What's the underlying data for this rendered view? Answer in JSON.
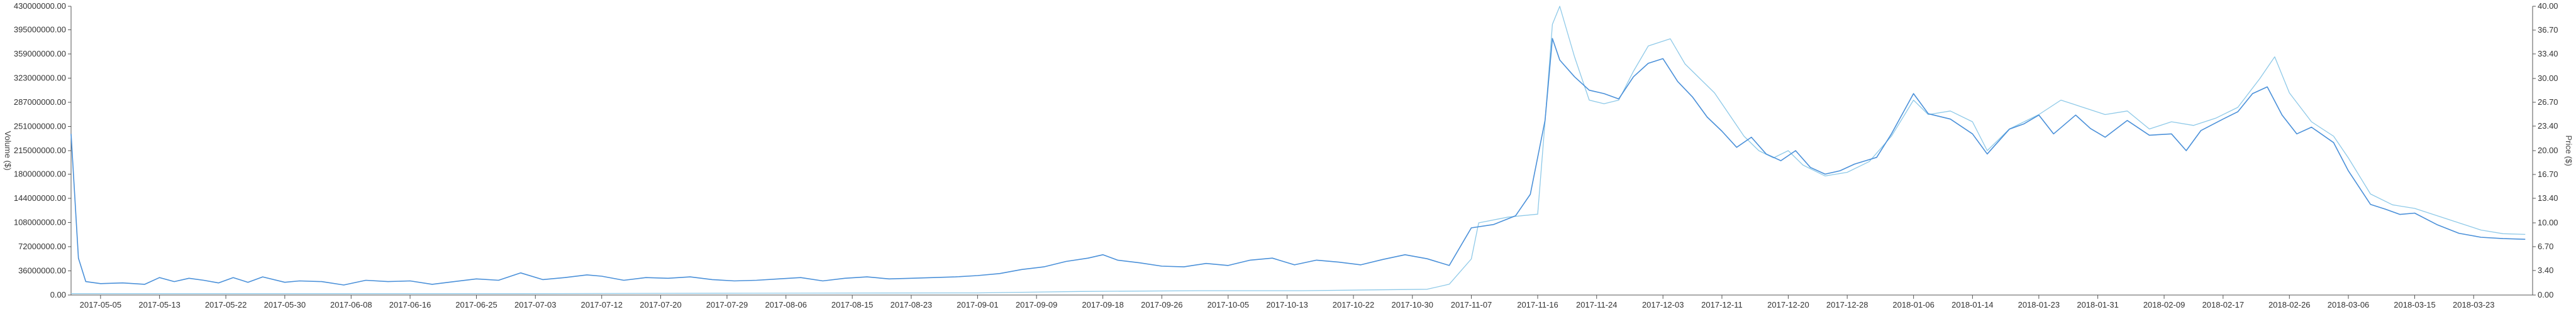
{
  "chart_data": {
    "type": "line",
    "title": "",
    "xlabel": "",
    "y_left_label": "Volume ($)",
    "y_right_label": "Price ($)",
    "y_left_ticks": [
      "0.00",
      "36000000.00",
      "72000000.00",
      "108000000.00",
      "144000000.00",
      "180000000.00",
      "215000000.00",
      "251000000.00",
      "287000000.00",
      "323000000.00",
      "359000000.00",
      "395000000.00",
      "430000000.00"
    ],
    "y_right_ticks": [
      "0.00",
      "3.40",
      "6.70",
      "10.00",
      "13.40",
      "16.70",
      "20.00",
      "23.40",
      "26.70",
      "30.00",
      "33.40",
      "36.70",
      "40.00"
    ],
    "y_left_range": [
      0,
      430000000
    ],
    "y_right_range": [
      0,
      40
    ],
    "x_range": [
      "2017-05-01",
      "2018-03-31"
    ],
    "x_ticks": [
      "2017-05-05",
      "2017-05-13",
      "2017-05-22",
      "2017-05-30",
      "2017-06-08",
      "2017-06-16",
      "2017-06-25",
      "2017-07-03",
      "2017-07-12",
      "2017-07-20",
      "2017-07-29",
      "2017-08-06",
      "2017-08-15",
      "2017-08-23",
      "2017-09-01",
      "2017-09-09",
      "2017-09-18",
      "2017-09-26",
      "2017-10-05",
      "2017-10-13",
      "2017-10-22",
      "2017-10-30",
      "2017-11-07",
      "2017-11-16",
      "2017-11-24",
      "2017-12-03",
      "2017-12-11",
      "2017-12-20",
      "2017-12-28",
      "2018-01-06",
      "2018-01-14",
      "2018-01-23",
      "2018-01-31",
      "2018-02-09",
      "2018-02-17",
      "2018-02-26",
      "2018-03-06",
      "2018-03-15",
      "2018-03-23"
    ],
    "grid": false,
    "series": [
      {
        "axis": "left",
        "color": "#4a90d9",
        "points": [
          [
            "2017-05-01",
            240000000
          ],
          [
            "2017-05-02",
            55000000
          ],
          [
            "2017-05-03",
            20000000
          ],
          [
            "2017-05-05",
            17000000
          ],
          [
            "2017-05-08",
            18000000
          ],
          [
            "2017-05-11",
            16000000
          ],
          [
            "2017-05-13",
            26000000
          ],
          [
            "2017-05-15",
            20000000
          ],
          [
            "2017-05-17",
            25000000
          ],
          [
            "2017-05-19",
            22000000
          ],
          [
            "2017-05-21",
            18000000
          ],
          [
            "2017-05-23",
            26000000
          ],
          [
            "2017-05-25",
            19000000
          ],
          [
            "2017-05-27",
            27000000
          ],
          [
            "2017-05-30",
            19000000
          ],
          [
            "2017-06-01",
            21000000
          ],
          [
            "2017-06-04",
            20000000
          ],
          [
            "2017-06-07",
            15000000
          ],
          [
            "2017-06-10",
            22000000
          ],
          [
            "2017-06-13",
            20000000
          ],
          [
            "2017-06-16",
            21000000
          ],
          [
            "2017-06-19",
            16000000
          ],
          [
            "2017-06-22",
            20000000
          ],
          [
            "2017-06-25",
            24000000
          ],
          [
            "2017-06-28",
            22000000
          ],
          [
            "2017-07-01",
            33000000
          ],
          [
            "2017-07-04",
            23000000
          ],
          [
            "2017-07-07",
            26000000
          ],
          [
            "2017-07-10",
            30000000
          ],
          [
            "2017-07-12",
            28000000
          ],
          [
            "2017-07-15",
            22000000
          ],
          [
            "2017-07-18",
            26000000
          ],
          [
            "2017-07-21",
            25000000
          ],
          [
            "2017-07-24",
            27000000
          ],
          [
            "2017-07-27",
            23000000
          ],
          [
            "2017-07-30",
            21000000
          ],
          [
            "2017-08-02",
            22000000
          ],
          [
            "2017-08-05",
            24000000
          ],
          [
            "2017-08-08",
            26000000
          ],
          [
            "2017-08-11",
            21000000
          ],
          [
            "2017-08-14",
            25000000
          ],
          [
            "2017-08-17",
            27000000
          ],
          [
            "2017-08-20",
            24000000
          ],
          [
            "2017-08-23",
            25000000
          ],
          [
            "2017-08-26",
            26000000
          ],
          [
            "2017-08-29",
            27000000
          ],
          [
            "2017-09-01",
            29000000
          ],
          [
            "2017-09-04",
            32000000
          ],
          [
            "2017-09-07",
            38000000
          ],
          [
            "2017-09-10",
            42000000
          ],
          [
            "2017-09-13",
            50000000
          ],
          [
            "2017-09-16",
            55000000
          ],
          [
            "2017-09-18",
            60000000
          ],
          [
            "2017-09-20",
            52000000
          ],
          [
            "2017-09-23",
            48000000
          ],
          [
            "2017-09-26",
            43000000
          ],
          [
            "2017-09-29",
            42000000
          ],
          [
            "2017-10-02",
            47000000
          ],
          [
            "2017-10-05",
            44000000
          ],
          [
            "2017-10-08",
            52000000
          ],
          [
            "2017-10-11",
            55000000
          ],
          [
            "2017-10-14",
            45000000
          ],
          [
            "2017-10-17",
            52000000
          ],
          [
            "2017-10-20",
            49000000
          ],
          [
            "2017-10-23",
            45000000
          ],
          [
            "2017-10-26",
            53000000
          ],
          [
            "2017-10-29",
            60000000
          ],
          [
            "2017-11-01",
            54000000
          ],
          [
            "2017-11-04",
            44000000
          ],
          [
            "2017-11-07",
            100000000
          ],
          [
            "2017-11-10",
            105000000
          ],
          [
            "2017-11-13",
            118000000
          ],
          [
            "2017-11-15",
            150000000
          ],
          [
            "2017-11-17",
            260000000
          ],
          [
            "2017-11-18",
            382000000
          ],
          [
            "2017-11-19",
            350000000
          ],
          [
            "2017-11-21",
            325000000
          ],
          [
            "2017-11-23",
            305000000
          ],
          [
            "2017-11-25",
            300000000
          ],
          [
            "2017-11-27",
            292000000
          ],
          [
            "2017-11-29",
            325000000
          ],
          [
            "2017-12-01",
            345000000
          ],
          [
            "2017-12-03",
            352000000
          ],
          [
            "2017-12-05",
            318000000
          ],
          [
            "2017-12-07",
            295000000
          ],
          [
            "2017-12-09",
            265000000
          ],
          [
            "2017-12-11",
            244000000
          ],
          [
            "2017-12-13",
            220000000
          ],
          [
            "2017-12-15",
            235000000
          ],
          [
            "2017-12-17",
            210000000
          ],
          [
            "2017-12-19",
            200000000
          ],
          [
            "2017-12-21",
            215000000
          ],
          [
            "2017-12-23",
            190000000
          ],
          [
            "2017-12-25",
            180000000
          ],
          [
            "2017-12-27",
            185000000
          ],
          [
            "2017-12-29",
            195000000
          ],
          [
            "2018-01-01",
            205000000
          ],
          [
            "2018-01-03",
            240000000
          ],
          [
            "2018-01-06",
            300000000
          ],
          [
            "2018-01-08",
            270000000
          ],
          [
            "2018-01-11",
            262000000
          ],
          [
            "2018-01-14",
            240000000
          ],
          [
            "2018-01-16",
            210000000
          ],
          [
            "2018-01-19",
            247000000
          ],
          [
            "2018-01-21",
            255000000
          ],
          [
            "2018-01-23",
            268000000
          ],
          [
            "2018-01-25",
            240000000
          ],
          [
            "2018-01-28",
            268000000
          ],
          [
            "2018-01-30",
            248000000
          ],
          [
            "2018-02-01",
            235000000
          ],
          [
            "2018-02-04",
            260000000
          ],
          [
            "2018-02-07",
            238000000
          ],
          [
            "2018-02-10",
            240000000
          ],
          [
            "2018-02-12",
            215000000
          ],
          [
            "2018-02-14",
            245000000
          ],
          [
            "2018-02-17",
            262000000
          ],
          [
            "2018-02-19",
            273000000
          ],
          [
            "2018-02-21",
            300000000
          ],
          [
            "2018-02-23",
            310000000
          ],
          [
            "2018-02-25",
            268000000
          ],
          [
            "2018-02-27",
            240000000
          ],
          [
            "2018-03-01",
            250000000
          ],
          [
            "2018-03-04",
            227000000
          ],
          [
            "2018-03-06",
            185000000
          ],
          [
            "2018-03-09",
            135000000
          ],
          [
            "2018-03-11",
            128000000
          ],
          [
            "2018-03-13",
            120000000
          ],
          [
            "2018-03-15",
            122000000
          ],
          [
            "2018-03-18",
            105000000
          ],
          [
            "2018-03-21",
            92000000
          ],
          [
            "2018-03-24",
            86000000
          ],
          [
            "2018-03-27",
            84000000
          ],
          [
            "2018-03-30",
            83000000
          ]
        ]
      },
      {
        "axis": "right",
        "color": "#8ec9e8",
        "points": [
          [
            "2017-05-01",
            0.2
          ],
          [
            "2017-06-01",
            0.2
          ],
          [
            "2017-07-01",
            0.2
          ],
          [
            "2017-08-01",
            0.25
          ],
          [
            "2017-09-01",
            0.3
          ],
          [
            "2017-09-15",
            0.5
          ],
          [
            "2017-10-01",
            0.6
          ],
          [
            "2017-10-15",
            0.6
          ],
          [
            "2017-11-01",
            0.8
          ],
          [
            "2017-11-04",
            1.5
          ],
          [
            "2017-11-07",
            5.0
          ],
          [
            "2017-11-08",
            10.0
          ],
          [
            "2017-11-12",
            10.8
          ],
          [
            "2017-11-16",
            11.2
          ],
          [
            "2017-11-17",
            24.0
          ],
          [
            "2017-11-18",
            37.5
          ],
          [
            "2017-11-19",
            40.0
          ],
          [
            "2017-11-21",
            33.0
          ],
          [
            "2017-11-23",
            27.0
          ],
          [
            "2017-11-25",
            26.5
          ],
          [
            "2017-11-27",
            27.0
          ],
          [
            "2017-11-29",
            31.0
          ],
          [
            "2017-12-01",
            34.5
          ],
          [
            "2017-12-04",
            35.5
          ],
          [
            "2017-12-06",
            32.0
          ],
          [
            "2017-12-08",
            30.0
          ],
          [
            "2017-12-10",
            28.0
          ],
          [
            "2017-12-12",
            25.0
          ],
          [
            "2017-12-14",
            22.0
          ],
          [
            "2017-12-16",
            20.0
          ],
          [
            "2017-12-18",
            19.0
          ],
          [
            "2017-12-20",
            20.0
          ],
          [
            "2017-12-22",
            18.0
          ],
          [
            "2017-12-25",
            16.5
          ],
          [
            "2017-12-28",
            17.0
          ],
          [
            "2017-12-31",
            18.5
          ],
          [
            "2018-01-03",
            22.0
          ],
          [
            "2018-01-06",
            27.0
          ],
          [
            "2018-01-08",
            25.0
          ],
          [
            "2018-01-11",
            25.5
          ],
          [
            "2018-01-14",
            24.0
          ],
          [
            "2018-01-16",
            20.0
          ],
          [
            "2018-01-19",
            23.0
          ],
          [
            "2018-01-21",
            24.0
          ],
          [
            "2018-01-23",
            25.0
          ],
          [
            "2018-01-26",
            27.0
          ],
          [
            "2018-01-29",
            26.0
          ],
          [
            "2018-02-01",
            25.0
          ],
          [
            "2018-02-04",
            25.5
          ],
          [
            "2018-02-07",
            23.0
          ],
          [
            "2018-02-10",
            24.0
          ],
          [
            "2018-02-13",
            23.5
          ],
          [
            "2018-02-16",
            24.5
          ],
          [
            "2018-02-19",
            26.0
          ],
          [
            "2018-02-22",
            30.0
          ],
          [
            "2018-02-24",
            33.0
          ],
          [
            "2018-02-26",
            28.0
          ],
          [
            "2018-03-01",
            24.0
          ],
          [
            "2018-03-04",
            22.0
          ],
          [
            "2018-03-06",
            19.0
          ],
          [
            "2018-03-09",
            14.0
          ],
          [
            "2018-03-12",
            12.5
          ],
          [
            "2018-03-15",
            12.0
          ],
          [
            "2018-03-18",
            11.0
          ],
          [
            "2018-03-21",
            10.0
          ],
          [
            "2018-03-24",
            9.0
          ],
          [
            "2018-03-27",
            8.5
          ],
          [
            "2018-03-30",
            8.4
          ]
        ]
      }
    ]
  }
}
